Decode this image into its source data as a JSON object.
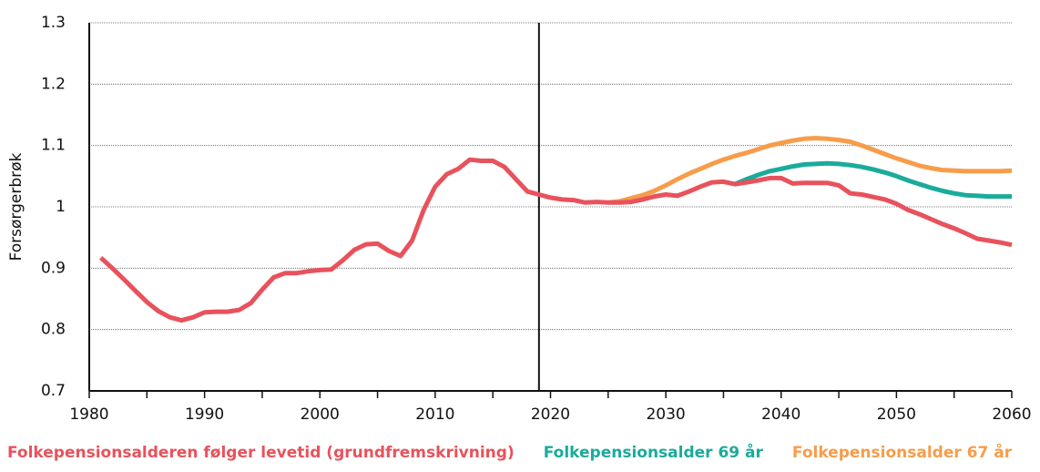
{
  "chart_data": {
    "type": "line",
    "y_label": "Forsørgerbrøk",
    "x": [
      1981,
      1982,
      1983,
      1984,
      1985,
      1986,
      1987,
      1988,
      1989,
      1990,
      1991,
      1992,
      1993,
      1994,
      1995,
      1996,
      1997,
      1998,
      1999,
      2000,
      2001,
      2002,
      2003,
      2004,
      2005,
      2006,
      2007,
      2008,
      2009,
      2010,
      2011,
      2012,
      2013,
      2014,
      2015,
      2016,
      2017,
      2018,
      2019,
      2020,
      2021,
      2022,
      2023,
      2024,
      2025,
      2026,
      2027,
      2028,
      2029,
      2030,
      2031,
      2032,
      2033,
      2034,
      2035,
      2036,
      2037,
      2038,
      2039,
      2040,
      2041,
      2042,
      2043,
      2044,
      2045,
      2046,
      2047,
      2048,
      2049,
      2050,
      2051,
      2052,
      2053,
      2054,
      2055,
      2056,
      2057,
      2058,
      2059,
      2060
    ],
    "series": [
      {
        "name": "Folkepensionsalderen følger levetid (grundfremskrivning)",
        "color": "#e8525c",
        "values": [
          0.917,
          0.9,
          0.882,
          0.863,
          0.845,
          0.83,
          0.82,
          0.815,
          0.82,
          0.828,
          0.829,
          0.829,
          0.832,
          0.843,
          0.865,
          0.885,
          0.892,
          0.892,
          0.895,
          0.897,
          0.898,
          0.913,
          0.93,
          0.939,
          0.94,
          0.928,
          0.92,
          0.945,
          0.995,
          1.033,
          1.053,
          1.062,
          1.077,
          1.075,
          1.075,
          1.065,
          1.045,
          1.025,
          1.02,
          1.015,
          1.012,
          1.011,
          1.007,
          1.008,
          1.007,
          1.007,
          1.008,
          1.012,
          1.017,
          1.02,
          1.018,
          1.025,
          1.033,
          1.04,
          1.041,
          1.037,
          1.04,
          1.043,
          1.047,
          1.047,
          1.038,
          1.039,
          1.039,
          1.039,
          1.035,
          1.022,
          1.02,
          1.016,
          1.012,
          1.005,
          0.995,
          0.988,
          0.98,
          0.972,
          0.965,
          0.957,
          0.948,
          0.945,
          0.942,
          0.938
        ]
      },
      {
        "name": "Folkepensionsalder 69 år",
        "color": "#1aab9b",
        "values": [
          null,
          null,
          null,
          null,
          null,
          null,
          null,
          null,
          null,
          null,
          null,
          null,
          null,
          null,
          null,
          null,
          null,
          null,
          null,
          null,
          null,
          null,
          null,
          null,
          null,
          null,
          null,
          null,
          null,
          null,
          null,
          null,
          null,
          null,
          null,
          null,
          null,
          null,
          null,
          null,
          null,
          null,
          null,
          null,
          null,
          null,
          null,
          null,
          null,
          null,
          null,
          null,
          null,
          null,
          null,
          1.037,
          1.045,
          1.052,
          1.058,
          1.062,
          1.066,
          1.069,
          1.07,
          1.071,
          1.07,
          1.068,
          1.065,
          1.061,
          1.056,
          1.05,
          1.043,
          1.037,
          1.031,
          1.026,
          1.022,
          1.019,
          1.018,
          1.017,
          1.017,
          1.017
        ]
      },
      {
        "name": "Folkepensionsalder 67 år",
        "color": "#f79c4a",
        "values": [
          null,
          null,
          null,
          null,
          null,
          null,
          null,
          null,
          null,
          null,
          null,
          null,
          null,
          null,
          null,
          null,
          null,
          null,
          null,
          null,
          null,
          null,
          null,
          null,
          null,
          null,
          null,
          null,
          null,
          null,
          null,
          null,
          null,
          null,
          null,
          null,
          null,
          null,
          null,
          null,
          null,
          null,
          null,
          null,
          1.007,
          1.009,
          1.014,
          1.019,
          1.026,
          1.035,
          1.045,
          1.054,
          1.062,
          1.07,
          1.077,
          1.083,
          1.088,
          1.094,
          1.1,
          1.104,
          1.108,
          1.111,
          1.112,
          1.111,
          1.109,
          1.106,
          1.1,
          1.093,
          1.086,
          1.079,
          1.073,
          1.067,
          1.063,
          1.06,
          1.059,
          1.058,
          1.058,
          1.058,
          1.058,
          1.059
        ]
      }
    ],
    "xlim": [
      1980,
      2060
    ],
    "xticks": [
      1980,
      1990,
      2000,
      2010,
      2020,
      2030,
      2040,
      2050,
      2060
    ],
    "xminorticks": [
      1985,
      1995,
      2005,
      2015,
      2025,
      2035,
      2045,
      2055
    ],
    "ylim": [
      0.7,
      1.3
    ],
    "yticks": [
      0.7,
      0.8,
      0.9,
      1,
      1.1,
      1.2,
      1.3
    ],
    "grid": true,
    "divider_x": 2019
  }
}
